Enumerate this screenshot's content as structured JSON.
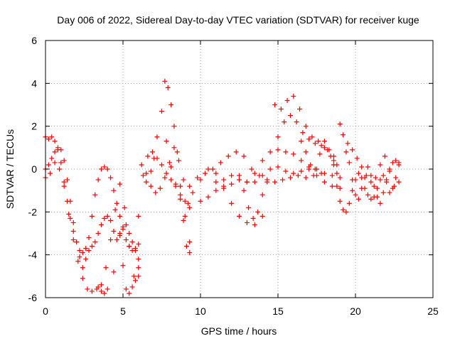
{
  "chart_data": {
    "type": "scatter",
    "title": "Day 006 of 2022, Sidereal Day-to-day VTEC variation (SDTVAR) for receiver kuge",
    "xlabel": "GPS time / hours",
    "ylabel": "SDTVAR / TECUs",
    "xlim": [
      0,
      25
    ],
    "ylim": [
      -6,
      6
    ],
    "xticks": [
      0,
      5,
      10,
      15,
      20,
      25
    ],
    "yticks": [
      -6,
      -4,
      -2,
      0,
      2,
      4,
      6
    ],
    "grid": true,
    "legend": "none",
    "marker": "plus",
    "color": "#ff0000",
    "series": [
      {
        "x": [
          0.0,
          0.2,
          0.4,
          0.6,
          0.8,
          1.0,
          1.2,
          1.4,
          1.6,
          1.8,
          2.0,
          2.2,
          2.4,
          2.6,
          2.8,
          3.0,
          3.2,
          3.4,
          3.6,
          3.8,
          4.0,
          4.2,
          4.4,
          4.6,
          4.8,
          5.0,
          5.2,
          5.4,
          5.6,
          5.8,
          6.0
        ],
        "y": [
          1.5,
          1.4,
          1.5,
          1.3,
          0.9,
          0.3,
          -0.6,
          -1.5,
          -2.3,
          -2.9,
          -3.4,
          -3.8,
          -3.9,
          -3.7,
          -3.2,
          -2.2,
          -1.2,
          -0.5,
          0.0,
          0.1,
          0.0,
          -0.4,
          -1.0,
          -1.6,
          -2.2,
          -2.8,
          -3.3,
          -3.6,
          -3.8,
          -3.7,
          -3.5
        ]
      },
      {
        "x": [
          0.0,
          0.2,
          0.4,
          0.6,
          0.8,
          1.0,
          1.2,
          1.4,
          1.6,
          1.8,
          2.0,
          2.2,
          2.4,
          2.6,
          2.8,
          3.0,
          3.2,
          3.4,
          3.6,
          3.8,
          4.0,
          4.2,
          4.4,
          4.6,
          4.8,
          5.0,
          5.2,
          5.4,
          5.6,
          5.8,
          6.0
        ],
        "y": [
          0.0,
          0.2,
          0.5,
          0.8,
          1.0,
          0.9,
          0.4,
          -0.5,
          -1.5,
          -2.5,
          -3.4,
          -4.1,
          -4.6,
          -4.2,
          -3.8,
          -3.6,
          -3.4,
          -3.0,
          -2.6,
          -2.3,
          -2.2,
          -2.4,
          -2.9,
          -3.3,
          -3.1,
          -2.7,
          -2.6,
          -3.0,
          -3.4,
          -3.8,
          -4.2
        ]
      },
      {
        "x": [
          0.0,
          0.3,
          0.6,
          0.9,
          1.2,
          1.5,
          1.8,
          2.1,
          2.4,
          2.7,
          3.0,
          3.3,
          3.6,
          3.9,
          4.2,
          4.5,
          4.8,
          5.1,
          5.4,
          5.7,
          6.0
        ],
        "y": [
          -0.4,
          -0.2,
          0.3,
          0.0,
          -0.8,
          -2.1,
          -3.3,
          -4.3,
          -5.1,
          -5.6,
          -5.7,
          -5.6,
          -5.4,
          -4.6,
          -3.3,
          -1.9,
          -0.7,
          -1.8,
          -3.6,
          -5.0,
          -4.6
        ]
      },
      {
        "x": [
          3.4,
          3.6,
          3.8,
          4.0,
          4.4,
          4.8,
          5.0,
          5.2,
          5.4,
          5.6,
          5.8,
          6.0
        ],
        "y": [
          -5.5,
          -5.7,
          -5.8,
          -5.6,
          -4.8,
          -3.0,
          -4.5,
          -5.6,
          -5.8,
          -5.5,
          -5.2,
          -5.0
        ]
      },
      {
        "x": [
          6.0,
          6.3,
          6.6,
          6.9,
          7.2,
          7.5,
          7.8,
          8.1,
          8.4,
          8.7,
          9.0,
          9.3
        ],
        "y": [
          -2.2,
          -0.3,
          0.6,
          0.8,
          0.5,
          0.2,
          -0.2,
          -0.5,
          -0.8,
          -1.2,
          -1.5,
          -1.8
        ]
      },
      {
        "x": [
          6.2,
          6.5,
          6.8,
          7.1,
          7.4,
          7.7,
          8.0,
          8.3,
          8.6,
          8.9,
          9.2
        ],
        "y": [
          0.2,
          -0.2,
          -0.8,
          -1.1,
          -0.9,
          -0.4,
          0.3,
          1.0,
          0.4,
          -0.5,
          -1.6
        ]
      },
      {
        "x": [
          6.5,
          6.8,
          7.0,
          7.2,
          7.5,
          7.8,
          8.1,
          8.4,
          8.7,
          9.0,
          9.3
        ],
        "y": [
          -0.6,
          -0.1,
          0.5,
          1.5,
          2.7,
          1.3,
          0.1,
          -0.7,
          -1.4,
          -2.2,
          -3.4
        ]
      },
      {
        "x": [
          7.7,
          7.9,
          8.1,
          8.3,
          8.5,
          8.7,
          8.9,
          9.1,
          9.3
        ],
        "y": [
          4.1,
          3.8,
          3.0,
          2.0,
          0.8,
          -0.8,
          -2.4,
          -3.6,
          -3.9
        ]
      },
      {
        "x": [
          9.3,
          9.8,
          10.3,
          10.8,
          11.3,
          11.8,
          12.3,
          12.8,
          13.3,
          13.8,
          14.3,
          14.8,
          15.3,
          15.8,
          16.3,
          16.8,
          17.3,
          17.8
        ],
        "y": [
          -0.8,
          -0.4,
          -0.2,
          0.0,
          0.3,
          0.6,
          0.8,
          0.6,
          0.0,
          -0.3,
          -0.5,
          -0.6,
          -0.5,
          -0.4,
          -0.3,
          -0.4,
          -0.3,
          -0.2
        ]
      },
      {
        "x": [
          9.5,
          10.0,
          10.5,
          11.0,
          11.5,
          12.0,
          12.5,
          13.0,
          13.5,
          14.0,
          14.5,
          15.0,
          15.5,
          16.0,
          16.5,
          17.0,
          17.5,
          18.0,
          18.5,
          19.0
        ],
        "y": [
          -1.1,
          -1.5,
          -1.3,
          -1.0,
          -0.9,
          -0.7,
          -0.5,
          -0.6,
          -0.6,
          -0.3,
          0.0,
          0.1,
          -0.1,
          -0.2,
          -0.1,
          0.1,
          0.0,
          -0.2,
          -0.3,
          -0.4
        ]
      },
      {
        "x": [
          10.0,
          10.5,
          11.0,
          11.5,
          12.0,
          12.5,
          13.0,
          13.5,
          14.0
        ],
        "y": [
          -0.5,
          0.0,
          -0.2,
          -0.8,
          -1.6,
          -2.2,
          -2.5,
          -2.6,
          -2.2
        ]
      },
      {
        "x": [
          11.0,
          11.5,
          12.0,
          12.5,
          13.0,
          13.5,
          14.0,
          14.5,
          15.0,
          15.5,
          16.0,
          16.5,
          17.0,
          17.5,
          18.0,
          18.5,
          19.0
        ],
        "y": [
          -0.6,
          -0.5,
          -0.3,
          -0.5,
          -0.6,
          -0.2,
          0.4,
          0.8,
          0.9,
          0.8,
          0.7,
          0.4,
          0.0,
          -0.3,
          -0.6,
          -0.8,
          -0.9
        ]
      },
      {
        "x": [
          12.5,
          12.8,
          13.1,
          13.4,
          13.7,
          14.0,
          14.3
        ],
        "y": [
          -0.3,
          -1.0,
          -1.8,
          -2.3,
          -2.0,
          -1.2,
          -0.6
        ]
      },
      {
        "x": [
          14.8,
          15.2,
          15.6,
          16.0,
          16.4,
          16.8,
          17.2,
          17.6,
          18.0,
          18.4,
          18.8
        ],
        "y": [
          3.0,
          2.8,
          3.2,
          3.4,
          2.8,
          2.0,
          1.5,
          1.3,
          1.0,
          0.6,
          0.2
        ]
      },
      {
        "x": [
          15.0,
          15.4,
          15.8,
          16.2,
          16.6,
          17.0,
          17.4,
          17.8,
          18.2,
          18.6
        ],
        "y": [
          1.5,
          2.2,
          2.5,
          2.2,
          1.7,
          1.4,
          1.2,
          1.1,
          0.9,
          0.6
        ]
      },
      {
        "x": [
          16.5,
          16.8,
          17.1,
          17.4,
          17.7,
          18.0,
          18.3,
          18.6
        ],
        "y": [
          1.3,
          0.8,
          0.2,
          0.0,
          0.7,
          1.3,
          0.9,
          0.4
        ]
      },
      {
        "x": [
          18.6,
          18.8,
          19.0,
          19.2,
          19.4,
          19.6,
          19.8,
          20.0,
          20.2,
          20.4,
          20.6,
          20.8,
          21.0,
          21.2,
          21.4,
          21.6,
          21.8,
          22.0,
          22.2,
          22.4,
          22.6,
          22.8
        ],
        "y": [
          0.2,
          -0.2,
          2.1,
          1.6,
          0.8,
          0.3,
          -0.5,
          -1.2,
          -1.4,
          -0.9,
          -0.4,
          0.1,
          -0.3,
          -0.8,
          -1.3,
          -1.6,
          -1.1,
          -0.5,
          0.0,
          0.3,
          0.4,
          0.2
        ]
      },
      {
        "x": [
          18.8,
          19.0,
          19.2,
          19.4,
          19.6,
          19.8,
          20.0,
          20.2,
          20.4,
          20.6,
          20.8,
          21.0,
          21.2,
          21.4,
          21.6,
          21.8,
          22.0,
          22.2,
          22.4,
          22.6,
          22.8
        ],
        "y": [
          -0.8,
          -1.5,
          -1.9,
          -2.0,
          -1.6,
          -1.0,
          -0.5,
          -0.2,
          -0.4,
          -0.9,
          -1.2,
          -1.4,
          -1.3,
          -0.9,
          -0.5,
          -0.3,
          -0.6,
          -1.1,
          -0.9,
          -0.4,
          -0.6
        ]
      },
      {
        "x": [
          19.5,
          19.8,
          20.1,
          20.4,
          20.7,
          21.0,
          21.3,
          21.6,
          21.9,
          22.2,
          22.5,
          22.8
        ],
        "y": [
          1.2,
          0.9,
          0.5,
          0.1,
          -0.3,
          -0.6,
          -0.4,
          0.2,
          0.6,
          -0.1,
          -0.8,
          0.3
        ]
      }
    ]
  }
}
